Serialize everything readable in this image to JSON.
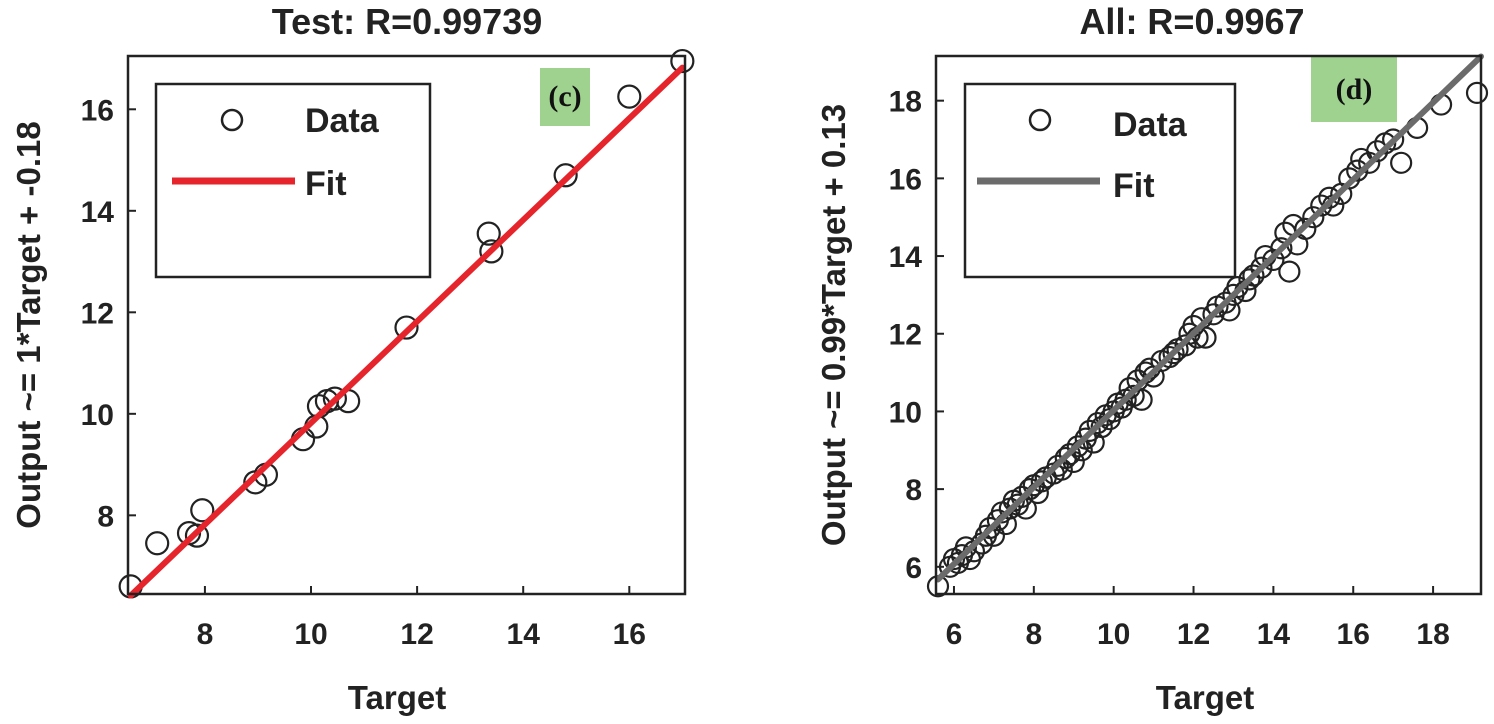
{
  "chart_data": [
    {
      "type": "scatter",
      "title": "Test: R=0.99739",
      "xlabel": "Target",
      "ylabel": "Output ~= 1*Target + -0.18",
      "panel_label": "(c)",
      "panel_label_color": "#9fd28f",
      "xlim": [
        6.55,
        17.05
      ],
      "ylim": [
        6.45,
        17.05
      ],
      "xticks": [
        8,
        10,
        12,
        14,
        16
      ],
      "yticks": [
        8,
        10,
        12,
        14,
        16
      ],
      "fit": {
        "slope": 1.0,
        "intercept": -0.18,
        "x_range": [
          6.6,
          17.0
        ],
        "color": "#e5242b"
      },
      "legend": {
        "data_label": "Data",
        "fit_label": "Fit",
        "position": "top-left"
      },
      "series": [
        {
          "name": "Data",
          "points": [
            [
              6.6,
              6.6
            ],
            [
              7.1,
              7.45
            ],
            [
              7.7,
              7.65
            ],
            [
              7.85,
              7.6
            ],
            [
              7.95,
              8.1
            ],
            [
              8.95,
              8.65
            ],
            [
              9.15,
              8.8
            ],
            [
              9.85,
              9.5
            ],
            [
              10.1,
              9.75
            ],
            [
              10.15,
              10.15
            ],
            [
              10.3,
              10.25
            ],
            [
              10.45,
              10.3
            ],
            [
              10.7,
              10.25
            ],
            [
              11.8,
              11.7
            ],
            [
              13.35,
              13.55
            ],
            [
              13.4,
              13.2
            ],
            [
              14.8,
              14.7
            ],
            [
              16.0,
              16.25
            ],
            [
              17.0,
              16.95
            ]
          ]
        }
      ]
    },
    {
      "type": "scatter",
      "title": "All: R=0.9967",
      "xlabel": "Target",
      "ylabel": "Output ~= 0.99*Target + 0.13",
      "panel_label": "(d)",
      "panel_label_color": "#9fd28f",
      "xlim": [
        5.55,
        19.2
      ],
      "ylim": [
        5.3,
        19.15
      ],
      "xticks": [
        6,
        8,
        10,
        12,
        14,
        16,
        18
      ],
      "yticks": [
        6,
        8,
        10,
        12,
        14,
        16,
        18
      ],
      "fit": {
        "slope": 0.99,
        "intercept": 0.13,
        "x_range": [
          5.6,
          19.2
        ],
        "color": "#6b6b6b"
      },
      "legend": {
        "data_label": "Data",
        "fit_label": "Fit",
        "position": "top-left"
      },
      "series": [
        {
          "name": "Data",
          "points": [
            [
              5.6,
              5.5
            ],
            [
              5.9,
              6.0
            ],
            [
              6.0,
              6.2
            ],
            [
              6.1,
              6.1
            ],
            [
              6.2,
              6.3
            ],
            [
              6.3,
              6.5
            ],
            [
              6.4,
              6.2
            ],
            [
              6.5,
              6.4
            ],
            [
              6.7,
              6.6
            ],
            [
              6.8,
              6.8
            ],
            [
              6.9,
              7.0
            ],
            [
              7.0,
              6.8
            ],
            [
              7.1,
              7.2
            ],
            [
              7.2,
              7.4
            ],
            [
              7.3,
              7.1
            ],
            [
              7.4,
              7.5
            ],
            [
              7.5,
              7.7
            ],
            [
              7.6,
              7.6
            ],
            [
              7.7,
              7.8
            ],
            [
              7.8,
              7.5
            ],
            [
              7.9,
              8.0
            ],
            [
              8.0,
              8.1
            ],
            [
              8.1,
              7.9
            ],
            [
              8.2,
              8.2
            ],
            [
              8.3,
              8.3
            ],
            [
              8.5,
              8.4
            ],
            [
              8.6,
              8.6
            ],
            [
              8.7,
              8.5
            ],
            [
              8.8,
              8.8
            ],
            [
              8.9,
              8.9
            ],
            [
              9.0,
              8.7
            ],
            [
              9.1,
              9.1
            ],
            [
              9.2,
              9.0
            ],
            [
              9.3,
              9.3
            ],
            [
              9.4,
              9.5
            ],
            [
              9.5,
              9.2
            ],
            [
              9.6,
              9.7
            ],
            [
              9.7,
              9.6
            ],
            [
              9.8,
              9.9
            ],
            [
              9.9,
              9.8
            ],
            [
              10.0,
              10.0
            ],
            [
              10.1,
              10.2
            ],
            [
              10.2,
              10.1
            ],
            [
              10.3,
              10.3
            ],
            [
              10.4,
              10.6
            ],
            [
              10.5,
              10.4
            ],
            [
              10.6,
              10.8
            ],
            [
              10.7,
              10.3
            ],
            [
              10.8,
              11.0
            ],
            [
              10.9,
              11.1
            ],
            [
              11.0,
              10.9
            ],
            [
              11.2,
              11.3
            ],
            [
              11.4,
              11.4
            ],
            [
              11.5,
              11.5
            ],
            [
              11.6,
              11.6
            ],
            [
              11.8,
              11.7
            ],
            [
              11.9,
              12.0
            ],
            [
              12.0,
              12.2
            ],
            [
              12.1,
              11.9
            ],
            [
              12.2,
              12.4
            ],
            [
              12.3,
              11.9
            ],
            [
              12.5,
              12.5
            ],
            [
              12.6,
              12.7
            ],
            [
              12.8,
              12.8
            ],
            [
              12.9,
              12.6
            ],
            [
              13.0,
              13.0
            ],
            [
              13.1,
              13.2
            ],
            [
              13.3,
              13.1
            ],
            [
              13.4,
              13.4
            ],
            [
              13.5,
              13.5
            ],
            [
              13.7,
              13.7
            ],
            [
              13.8,
              14.0
            ],
            [
              14.0,
              13.9
            ],
            [
              14.2,
              14.2
            ],
            [
              14.3,
              14.6
            ],
            [
              14.4,
              13.6
            ],
            [
              14.5,
              14.8
            ],
            [
              14.6,
              14.3
            ],
            [
              14.8,
              14.7
            ],
            [
              15.0,
              15.0
            ],
            [
              15.2,
              15.3
            ],
            [
              15.4,
              15.5
            ],
            [
              15.5,
              15.3
            ],
            [
              15.7,
              15.6
            ],
            [
              15.9,
              16.0
            ],
            [
              16.1,
              16.2
            ],
            [
              16.2,
              16.5
            ],
            [
              16.4,
              16.4
            ],
            [
              16.6,
              16.7
            ],
            [
              16.8,
              16.9
            ],
            [
              17.0,
              17.0
            ],
            [
              17.2,
              16.4
            ],
            [
              17.6,
              17.3
            ],
            [
              18.2,
              17.9
            ],
            [
              19.1,
              18.2
            ]
          ]
        }
      ]
    }
  ]
}
